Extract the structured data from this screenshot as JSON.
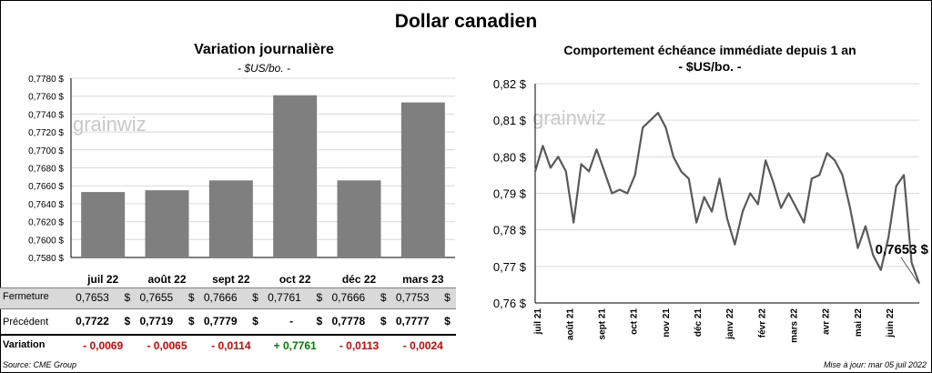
{
  "title": "Dollar canadien",
  "source": "Source: CME Group",
  "updated": "Mise à jour: mar 05 juil 2022",
  "watermark": "grainwiz",
  "colors": {
    "bar": "#7f7f7f",
    "line": "#595959",
    "negative": "#e00000",
    "positive": "#008000",
    "band": "#d9d9d9"
  },
  "chart_data": [
    {
      "type": "bar",
      "title": "Variation  journalière",
      "subtitle": "- $US/bo. -",
      "categories": [
        "juil 22",
        "août 22",
        "sept 22",
        "oct 22",
        "déc 22",
        "mars 23"
      ],
      "values": [
        0.7653,
        0.7655,
        0.7666,
        0.7761,
        0.7666,
        0.7753
      ],
      "ylim": [
        0.758,
        0.778
      ],
      "yticks": [
        "0,7580 $",
        "0,7600 $",
        "0,7620 $",
        "0,7640 $",
        "0,7660 $",
        "0,7680 $",
        "0,7700 $",
        "0,7720 $",
        "0,7740 $",
        "0,7760 $",
        "0,7780 $"
      ],
      "grid": true
    },
    {
      "type": "line",
      "title": "Comportement échéance immédiate depuis 1 an",
      "subtitle": "- $US/bo. -",
      "ylim": [
        0.76,
        0.82
      ],
      "yticks": [
        "0,76 $",
        "0,77 $",
        "0,78 $",
        "0,79 $",
        "0,80 $",
        "0,81 $",
        "0,82 $"
      ],
      "xticks": [
        "juil 21",
        "août 21",
        "sept 21",
        "oct 21",
        "nov 21",
        "déc 21",
        "janv 22",
        "févr 22",
        "mars 22",
        "avr 22",
        "mai 22",
        "juin 22"
      ],
      "x": [
        0.0,
        0.02,
        0.04,
        0.06,
        0.08,
        0.1,
        0.12,
        0.14,
        0.16,
        0.18,
        0.2,
        0.22,
        0.24,
        0.26,
        0.28,
        0.3,
        0.32,
        0.34,
        0.36,
        0.38,
        0.4,
        0.42,
        0.44,
        0.46,
        0.48,
        0.5,
        0.52,
        0.54,
        0.56,
        0.58,
        0.6,
        0.62,
        0.64,
        0.66,
        0.68,
        0.7,
        0.72,
        0.74,
        0.76,
        0.78,
        0.8,
        0.82,
        0.84,
        0.86,
        0.88,
        0.9,
        0.92,
        0.94,
        0.96,
        0.98,
        1.0
      ],
      "series": [
        {
          "values": [
            0.796,
            0.803,
            0.797,
            0.8,
            0.796,
            0.782,
            0.798,
            0.796,
            0.802,
            0.796,
            0.79,
            0.791,
            0.79,
            0.795,
            0.808,
            0.81,
            0.812,
            0.808,
            0.8,
            0.796,
            0.794,
            0.782,
            0.789,
            0.785,
            0.794,
            0.783,
            0.776,
            0.785,
            0.79,
            0.787,
            0.799,
            0.793,
            0.786,
            0.79,
            0.786,
            0.782,
            0.794,
            0.795,
            0.801,
            0.799,
            0.795,
            0.786,
            0.775,
            0.781,
            0.773,
            0.769,
            0.778,
            0.792,
            0.795,
            0.771,
            0.7653
          ],
          "last_label": "0,7653 $"
        }
      ]
    }
  ],
  "table": {
    "rows": [
      {
        "label": "Fermeture",
        "values": [
          "0,7653",
          "0,7655",
          "0,7666",
          "0,7761",
          "0,7666",
          "0,7753"
        ],
        "unit": "$"
      },
      {
        "label": "Précédent",
        "values": [
          "0,7722",
          "0,7719",
          "0,7779",
          "-",
          "0,7778",
          "0,7777"
        ],
        "unit": "$"
      }
    ],
    "variation": {
      "label": "Variation",
      "values": [
        "- 0,0069",
        "- 0,0065",
        "- 0,0114",
        "+ 0,7761",
        "- 0,0113",
        "- 0,0024"
      ],
      "signs": [
        "neg",
        "neg",
        "neg",
        "pos",
        "neg",
        "neg"
      ]
    }
  }
}
